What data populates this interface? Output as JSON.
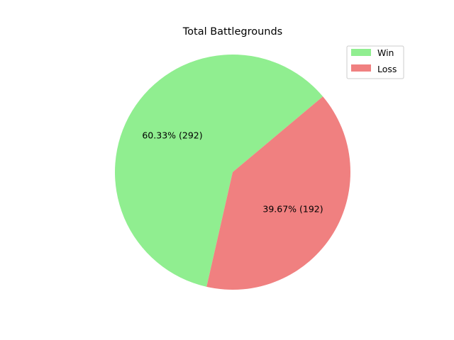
{
  "chart_data": {
    "type": "pie",
    "title": "Total Battlegrounds",
    "slices": [
      {
        "name": "Win",
        "value": 292,
        "label": "60.33% (292)",
        "color": "#90ee90"
      },
      {
        "name": "Loss",
        "value": 192,
        "label": "39.67% (192)",
        "color": "#f08080"
      }
    ],
    "legend_position": "top-right"
  }
}
